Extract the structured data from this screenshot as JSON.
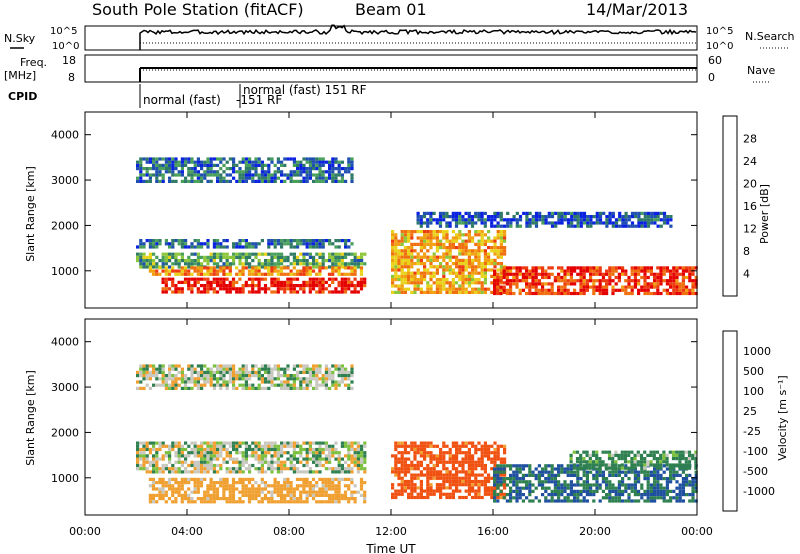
{
  "header": {
    "station": "South Pole Station (fitACF)",
    "beam": "Beam 01",
    "date": "14/Mar/2013"
  },
  "strips": {
    "nsky_label": "N.Sky",
    "nsearch_label": "N.Search",
    "freq_label_1": "Freq.",
    "freq_label_2": "[MHz]",
    "nave_label": "Nave",
    "cpid_label": "CPID",
    "nsky_ticks": [
      "10^5",
      "10^0"
    ],
    "nsearch_ticks": [
      "10^5",
      "10^0"
    ],
    "freq_ticks": [
      "18",
      "8"
    ],
    "nave_ticks": [
      "60",
      "0"
    ],
    "cpid_mode_1": "normal (fast)",
    "cpid_mode_1b": "-151 RF",
    "cpid_mode_2": "normal (fast) 151 RF"
  },
  "colors": {
    "power": [
      "#0a22e0",
      "#1f4fb0",
      "#2f7a64",
      "#49a05a",
      "#8cc63a",
      "#e8d21a",
      "#f0a010",
      "#f07010",
      "#ee3a10",
      "#e40000"
    ],
    "velocity": [
      "#e40000",
      "#f05010",
      "#f0a030",
      "#c8c8c0",
      "#c8c8c0",
      "#7cc040",
      "#2f8050",
      "#1f50a0",
      "#1030d0"
    ]
  },
  "chart_data": [
    {
      "type": "heatmap",
      "name": "power",
      "title": "",
      "xlabel": "",
      "ylabel": "Slant Range [km]",
      "xlim": [
        "00:00",
        "00:00"
      ],
      "ylim": [
        180,
        4500
      ],
      "x_ticks": [
        "00:00",
        "04:00",
        "08:00",
        "12:00",
        "16:00",
        "20:00",
        "00:00"
      ],
      "y_ticks": [
        "1000",
        "2000",
        "3000",
        "4000"
      ],
      "colorbar_label": "Power [dB]",
      "colorbar_ticks": [
        "4",
        "8",
        "12",
        "16",
        "20",
        "24",
        "28"
      ],
      "echo_bands": [
        {
          "start": "02:00",
          "end": "10:30",
          "range_km": [
            3000,
            3500
          ],
          "dB": 8
        },
        {
          "start": "02:00",
          "end": "10:30",
          "range_km": [
            1500,
            1700
          ],
          "dB": 8
        },
        {
          "start": "02:00",
          "end": "11:00",
          "range_km": [
            1100,
            1400
          ],
          "dB": 12
        },
        {
          "start": "02:30",
          "end": "11:00",
          "range_km": [
            900,
            1100
          ],
          "dB": 22
        },
        {
          "start": "03:00",
          "end": "11:00",
          "range_km": [
            500,
            850
          ],
          "dB": 28
        },
        {
          "start": "12:00",
          "end": "16:30",
          "range_km": [
            500,
            1900
          ],
          "dB": 20
        },
        {
          "start": "16:00",
          "end": "24:00",
          "range_km": [
            500,
            1100
          ],
          "dB": 26
        },
        {
          "start": "13:00",
          "end": "23:00",
          "range_km": [
            2000,
            2300
          ],
          "dB": 6
        }
      ]
    },
    {
      "type": "heatmap",
      "name": "velocity",
      "title": "",
      "xlabel": "Time UT",
      "ylabel": "Slant Range [km]",
      "xlim": [
        "00:00",
        "00:00"
      ],
      "ylim": [
        180,
        4500
      ],
      "x_ticks": [
        "00:00",
        "04:00",
        "08:00",
        "12:00",
        "16:00",
        "20:00",
        "00:00"
      ],
      "y_ticks": [
        "1000",
        "2000",
        "3000",
        "4000"
      ],
      "colorbar_label": "Velocity [m s⁻¹]",
      "colorbar_ticks": [
        "1000",
        "500",
        "100",
        "25",
        "-25",
        "-100",
        "-500",
        "-1000"
      ],
      "echo_bands": [
        {
          "start": "02:00",
          "end": "10:30",
          "range_km": [
            3000,
            3500
          ],
          "velocity": 0
        },
        {
          "start": "02:00",
          "end": "11:00",
          "range_km": [
            1100,
            1800
          ],
          "velocity": 0
        },
        {
          "start": "02:30",
          "end": "11:00",
          "range_km": [
            450,
            1000
          ],
          "velocity": -150
        },
        {
          "start": "12:00",
          "end": "16:30",
          "range_km": [
            600,
            1800
          ],
          "velocity": -400
        },
        {
          "start": "16:00",
          "end": "24:00",
          "range_km": [
            500,
            1300
          ],
          "velocity": 300
        },
        {
          "start": "19:00",
          "end": "24:00",
          "range_km": [
            1200,
            1600
          ],
          "velocity": 120
        }
      ]
    }
  ]
}
